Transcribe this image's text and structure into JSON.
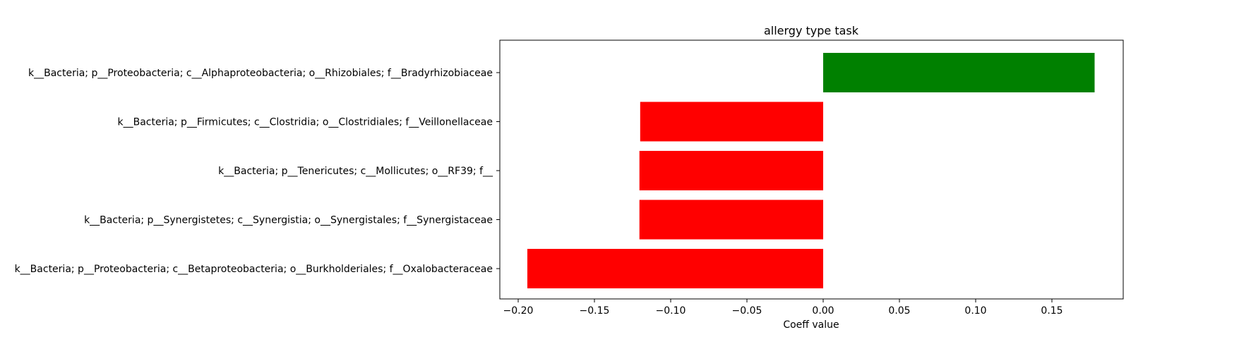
{
  "chart_data": {
    "type": "bar",
    "orientation": "horizontal",
    "title": "allergy type task",
    "xlabel": "Coeff value",
    "ylabel": "",
    "xlim": [
      -0.2,
      0.2
    ],
    "xticks": [
      -0.2,
      -0.15,
      -0.1,
      -0.05,
      0.0,
      0.05,
      0.1,
      0.15
    ],
    "xtick_labels": [
      "−0.20",
      "−0.15",
      "−0.10",
      "−0.05",
      "0.00",
      "0.05",
      "0.10",
      "0.15"
    ],
    "grid": false,
    "categories": [
      "k__Bacteria; p__Proteobacteria; c__Alphaproteobacteria; o__Rhizobiales; f__Bradyrhizobiaceae",
      "k__Bacteria; p__Firmicutes; c__Clostridia; o__Clostridiales; f__Veillonellaceae",
      "k__Bacteria; p__Tenericutes; c__Mollicutes; o__RF39; f__",
      "k__Bacteria; p__Synergistetes; c__Synergistia; o__Synergistales; f__Synergistaceae",
      "k__Bacteria; p__Proteobacteria; c__Betaproteobacteria; o__Burkholderiales; f__Oxalobacteraceae"
    ],
    "values": [
      0.178,
      -0.12,
      -0.1205,
      -0.1205,
      -0.194
    ],
    "colors": {
      "positive": "#008000",
      "negative": "#ff0000"
    }
  }
}
